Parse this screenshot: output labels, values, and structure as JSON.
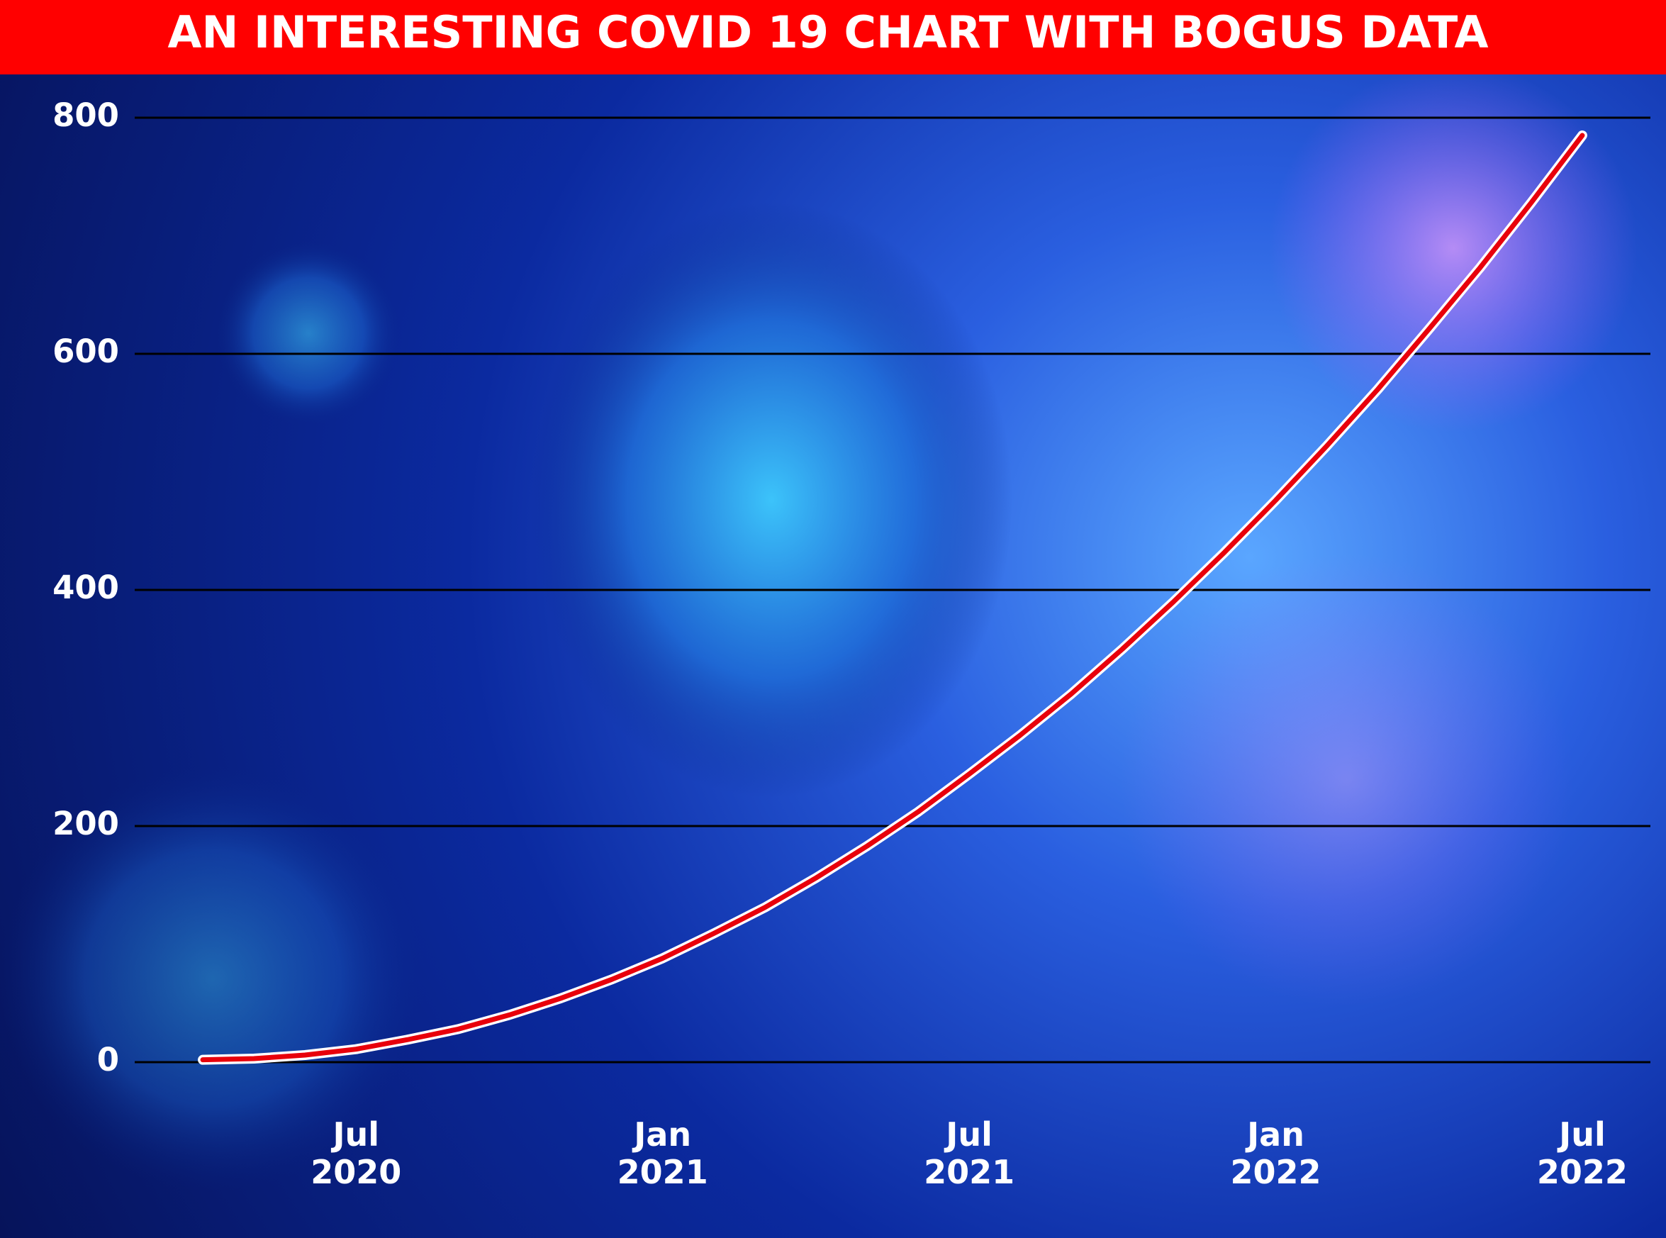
{
  "chart_data": {
    "type": "line",
    "title": "AN INTERESTING COVID 19 CHART WITH BOGUS DATA",
    "x": [
      "2020-04",
      "2020-05",
      "2020-06",
      "2020-07",
      "2020-08",
      "2020-09",
      "2020-10",
      "2020-11",
      "2020-12",
      "2021-01",
      "2021-02",
      "2021-03",
      "2021-04",
      "2021-05",
      "2021-06",
      "2021-07",
      "2021-08",
      "2021-09",
      "2021-10",
      "2021-11",
      "2021-12",
      "2022-01",
      "2022-02",
      "2022-03",
      "2022-04",
      "2022-05",
      "2022-06",
      "2022-07"
    ],
    "series": [
      {
        "color": "#e8000b",
        "values": [
          2,
          3,
          6,
          11,
          19,
          28,
          40,
          54,
          70,
          88,
          109,
          131,
          156,
          183,
          212,
          244,
          277,
          312,
          350,
          390,
          432,
          476,
          522,
          570,
          621,
          673,
          728,
          785
        ]
      }
    ],
    "xlim": [
      "2020-03",
      "2022-08"
    ],
    "xticks": [
      {
        "value": "2020-07",
        "label": "Jul 2020"
      },
      {
        "value": "2021-01",
        "label": "Jan 2021"
      },
      {
        "value": "2021-07",
        "label": "Jul 2021"
      },
      {
        "value": "2022-01",
        "label": "Jan 2022"
      },
      {
        "value": "2022-07",
        "label": "Jul 2022"
      }
    ],
    "ylim": [
      0,
      800
    ],
    "yticks": [
      0,
      200,
      400,
      600,
      800
    ],
    "grid": true
  }
}
